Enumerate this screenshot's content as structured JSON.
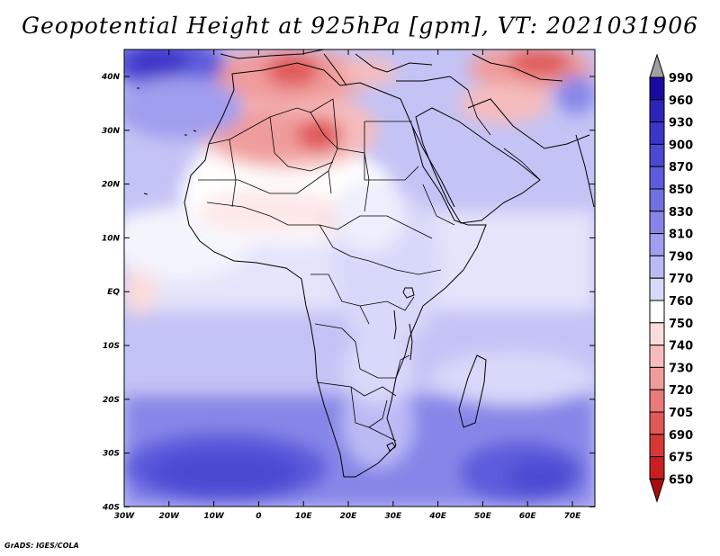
{
  "title": "Geopotential Height at 925hPa [gpm], VT: 2021031906",
  "credit": "GrADS: IGES/COLA",
  "axes": {
    "lon_labels": [
      "30W",
      "20W",
      "10W",
      "0",
      "10E",
      "20E",
      "30E",
      "40E",
      "50E",
      "60E",
      "70E"
    ],
    "lat_labels": [
      "40N",
      "30N",
      "20N",
      "10N",
      "EQ",
      "10S",
      "20S",
      "30S",
      "40S"
    ]
  },
  "colorbar": {
    "levels": [
      "990",
      "960",
      "930",
      "900",
      "870",
      "850",
      "830",
      "810",
      "790",
      "770",
      "760",
      "750",
      "740",
      "730",
      "720",
      "705",
      "690",
      "675",
      "650"
    ],
    "colors": [
      "#1a0aa0",
      "#2d24b8",
      "#3c36c8",
      "#4b48d2",
      "#5d5cdc",
      "#7170e2",
      "#8786e8",
      "#a09eee",
      "#bbbaf4",
      "#d8d8fa",
      "#ffffff",
      "#fbdcdc",
      "#f6bcbc",
      "#f09c9c",
      "#e87a7a",
      "#e05858",
      "#d63838",
      "#c82020",
      "#a80c0c"
    ],
    "top_arrow_color": "#a0a0a0"
  },
  "map": {
    "region": "Africa and Middle East",
    "lon_range": [
      -30,
      75
    ],
    "lat_range": [
      -40,
      45
    ],
    "field": "Geopotential Height 925hPa"
  }
}
